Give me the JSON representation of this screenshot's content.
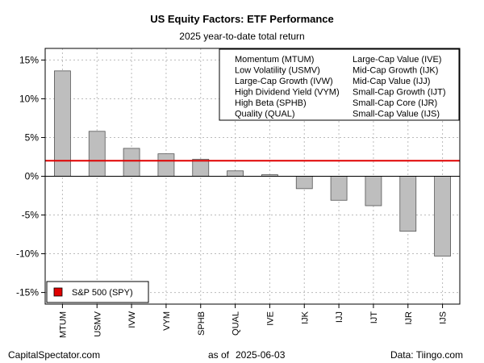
{
  "chart_data": {
    "type": "bar",
    "title": "US Equity Factors: ETF Performance",
    "subtitle": "2025 year-to-date total return",
    "categories": [
      "MTUM",
      "USMV",
      "IVW",
      "VYM",
      "SPHB",
      "QUAL",
      "IVE",
      "IJK",
      "IJJ",
      "IJT",
      "IJR",
      "IJS"
    ],
    "values": [
      13.6,
      5.8,
      3.6,
      2.9,
      2.2,
      0.7,
      0.2,
      -1.6,
      -3.1,
      -3.8,
      -7.1,
      -10.3
    ],
    "ylim": [
      -16.5,
      16.5
    ],
    "yticks": [
      -15,
      -10,
      -5,
      0,
      5,
      10,
      15
    ],
    "ytick_labels": [
      "-15%",
      "-10%",
      "-5%",
      "0%",
      "5%",
      "10%",
      "15%"
    ],
    "benchmark": {
      "name": "S&P 500 (SPY)",
      "value": 2.0
    },
    "legend_items": [
      "Momentum (MTUM)",
      "Low Volatility (USMV)",
      "Large-Cap Growth (IVW)",
      "High Dividend Yield (VYM)",
      "High Beta (SPHB)",
      "Quality (QUAL)",
      "Large-Cap Value (IVE)",
      "Mid-Cap Growth (IJK)",
      "Mid-Cap Value (IJJ)",
      "Small-Cap Growth (IJT)",
      "Small-Cap Core (IJR)",
      "Small-Cap Value (IJS)"
    ],
    "grid": true
  },
  "footer": {
    "left": "CapitalSpectator.com",
    "center_label": "as of",
    "center_date": "2025-06-03",
    "right": "Data: Tiingo.com"
  },
  "colors": {
    "bar_fill": "#bebebe",
    "bar_stroke": "#555555",
    "benchmark_line": "#e00000",
    "grid": "#bbbbbb"
  }
}
